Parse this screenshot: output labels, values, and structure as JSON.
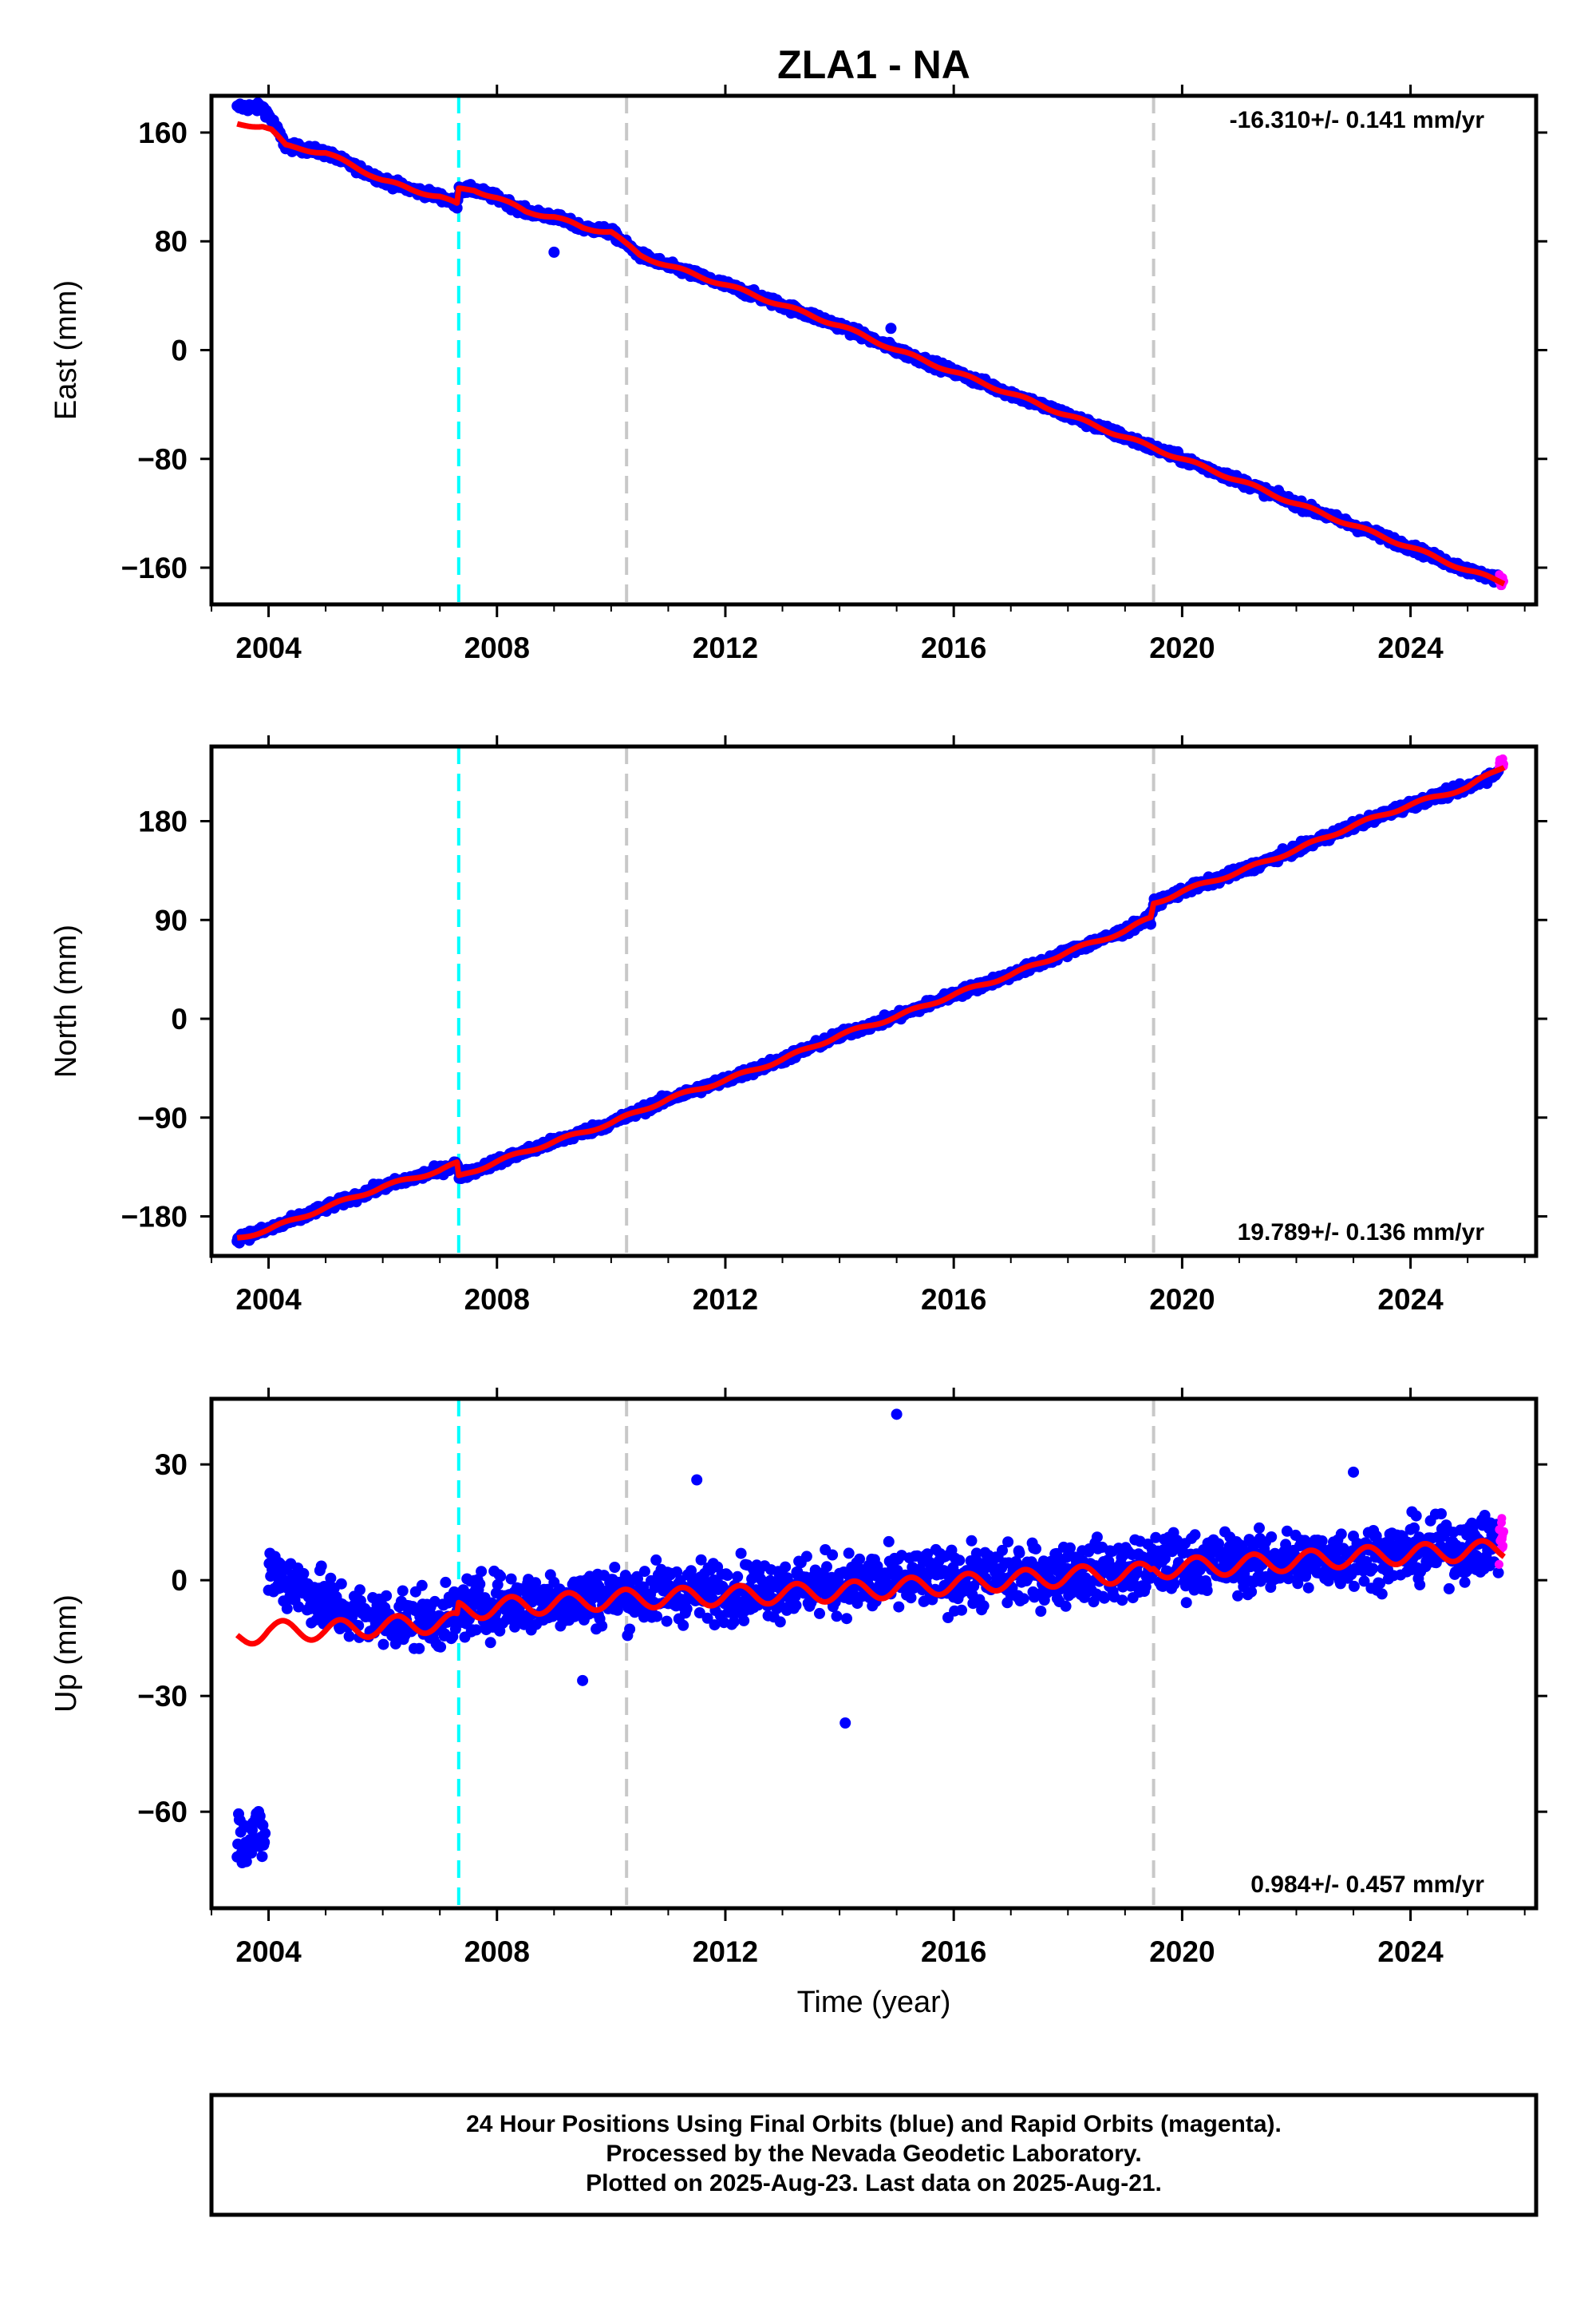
{
  "chart_title": "ZLA1 - NA",
  "colors": {
    "final_orbits": "#0000ff",
    "rapid_orbits": "#ff00ff",
    "model": "#ff0000",
    "equipment_change": "#00ffff",
    "other_event": "#c8c8c8",
    "frame": "#000000"
  },
  "chart_data": [
    {
      "type": "scatter",
      "name": "east",
      "ylabel": "East (mm)",
      "xlabel": "",
      "xlim": [
        2003.0,
        2026.2
      ],
      "ylim": [
        -187,
        187
      ],
      "yticks": [
        160,
        80,
        0,
        -80,
        -160
      ],
      "ytick_labels": [
        "160",
        "80",
        "0",
        "−80",
        "−160"
      ],
      "xticks": [
        2004,
        2008,
        2012,
        2016,
        2020,
        2024
      ],
      "xtick_labels": [
        "2004",
        "2008",
        "2012",
        "2016",
        "2020",
        "2024"
      ],
      "rate_label": "-16.310+/- 0.141 mm/yr",
      "rate_position": "top-right",
      "series": [
        {
          "name": "Final Orbits (blue)",
          "role": "final",
          "data_start": 2003.45,
          "data_end": 2025.55,
          "noise_mm": 2.2,
          "x": [
            2003.45,
            2003.5,
            2003.9,
            2004.05,
            2004.3,
            2004.6,
            2005.0,
            2005.5,
            2006.0,
            2006.5,
            2007.0,
            2007.3,
            2007.33,
            2007.6,
            2008.0,
            2008.5,
            2009.0,
            2009.5,
            2010.0,
            2010.25,
            2010.5,
            2011.0,
            2012.0,
            2013.0,
            2014.0,
            2015.0,
            2016.0,
            2017.0,
            2018.0,
            2019.0,
            2019.5,
            2020.0,
            2021.0,
            2022.0,
            2023.0,
            2024.0,
            2025.0,
            2025.5
          ],
          "y": [
            178,
            179,
            178,
            170,
            150,
            148,
            145,
            135,
            125,
            118,
            113,
            107,
            118,
            118,
            112,
            102,
            98,
            90,
            87,
            78,
            70,
            62,
            48,
            33,
            18,
            0,
            -16,
            -32,
            -48,
            -64,
            -72,
            -80,
            -96,
            -113,
            -129,
            -145,
            -162,
            -168
          ]
        },
        {
          "name": "Rapid Orbits (magenta)",
          "role": "rapid",
          "data_start": 2025.55,
          "data_end": 2025.64,
          "noise_mm": 3.0,
          "x": [
            2025.55,
            2025.64
          ],
          "y": [
            -169,
            -170
          ]
        },
        {
          "name": "Model fit",
          "role": "model",
          "line": true,
          "seasonal_mm": 1.2,
          "x": [
            2003.45,
            2003.9,
            2004.05,
            2004.3,
            2004.6,
            2005.0,
            2005.5,
            2006.0,
            2006.5,
            2007.0,
            2007.3,
            2007.33,
            2007.6,
            2008.0,
            2008.5,
            2009.0,
            2009.5,
            2010.0,
            2010.25,
            2010.5,
            2011.0,
            2012.0,
            2013.0,
            2014.0,
            2015.0,
            2016.0,
            2017.0,
            2018.0,
            2019.0,
            2019.5,
            2020.0,
            2021.0,
            2022.0,
            2023.0,
            2024.0,
            2025.0,
            2025.64
          ],
          "y": [
            166,
            165,
            162,
            150,
            148,
            145,
            135,
            125,
            118,
            113,
            107,
            118,
            118,
            112,
            102,
            98,
            90,
            87,
            78,
            70,
            62,
            48,
            33,
            18,
            0,
            -16,
            -32,
            -48,
            -64,
            -72,
            -80,
            -96,
            -113,
            -129,
            -145,
            -162,
            -171
          ]
        }
      ],
      "events": [
        {
          "x": 2007.33,
          "kind": "equipment_change"
        },
        {
          "x": 2010.27,
          "kind": "other_event"
        },
        {
          "x": 2019.5,
          "kind": "other_event"
        }
      ],
      "outliers": [
        {
          "x": 2009.0,
          "y": 72
        },
        {
          "x": 2014.9,
          "y": 16
        }
      ]
    },
    {
      "type": "scatter",
      "name": "north",
      "ylabel": "North (mm)",
      "xlabel": "",
      "xlim": [
        2003.0,
        2026.2
      ],
      "ylim": [
        -216,
        248
      ],
      "yticks": [
        180,
        90,
        0,
        -90,
        -180
      ],
      "ytick_labels": [
        "180",
        "90",
        "0",
        "−90",
        "−180"
      ],
      "xticks": [
        2004,
        2008,
        2012,
        2016,
        2020,
        2024
      ],
      "xtick_labels": [
        "2004",
        "2008",
        "2012",
        "2016",
        "2020",
        "2024"
      ],
      "rate_label": "19.789+/- 0.136 mm/yr",
      "rate_position": "bottom-right",
      "series": [
        {
          "name": "Final Orbits (blue)",
          "role": "final",
          "data_start": 2003.45,
          "data_end": 2025.55,
          "noise_mm": 2.8,
          "x": [
            2003.45,
            2004.0,
            2005.0,
            2006.0,
            2007.0,
            2007.3,
            2007.33,
            2008.0,
            2009.0,
            2010.0,
            2011.0,
            2012.0,
            2013.0,
            2014.0,
            2015.0,
            2016.0,
            2017.0,
            2018.0,
            2019.0,
            2019.45,
            2019.5,
            2020.0,
            2021.0,
            2022.0,
            2023.0,
            2024.0,
            2025.0,
            2025.55
          ],
          "y": [
            -200,
            -192,
            -172,
            -153,
            -138,
            -132,
            -144,
            -130,
            -112,
            -95,
            -73,
            -56,
            -37,
            -15,
            2,
            22,
            40,
            61,
            80,
            92,
            105,
            116,
            134,
            154,
            176,
            195,
            211,
            225
          ]
        },
        {
          "name": "Rapid Orbits (magenta)",
          "role": "rapid",
          "data_start": 2025.55,
          "data_end": 2025.64,
          "noise_mm": 3.0,
          "x": [
            2025.55,
            2025.64
          ],
          "y": [
            232,
            234
          ]
        },
        {
          "name": "Model fit",
          "role": "model",
          "line": true,
          "seasonal_mm": 1.5,
          "x": [
            2003.45,
            2004.0,
            2005.0,
            2006.0,
            2007.0,
            2007.3,
            2007.33,
            2008.0,
            2009.0,
            2010.0,
            2011.0,
            2012.0,
            2013.0,
            2014.0,
            2015.0,
            2016.0,
            2017.0,
            2018.0,
            2019.0,
            2019.45,
            2019.5,
            2020.0,
            2021.0,
            2022.0,
            2023.0,
            2024.0,
            2025.0,
            2025.64
          ],
          "y": [
            -200,
            -192,
            -172,
            -153,
            -138,
            -132,
            -144,
            -130,
            -112,
            -95,
            -73,
            -56,
            -37,
            -15,
            2,
            22,
            40,
            61,
            80,
            92,
            105,
            116,
            134,
            154,
            176,
            195,
            211,
            230
          ]
        }
      ],
      "events": [
        {
          "x": 2007.33,
          "kind": "equipment_change"
        },
        {
          "x": 2010.27,
          "kind": "other_event"
        },
        {
          "x": 2019.5,
          "kind": "other_event"
        }
      ],
      "outliers": []
    },
    {
      "type": "scatter",
      "name": "up",
      "ylabel": "Up (mm)",
      "xlabel": "Time (year)",
      "xlim": [
        2003.0,
        2026.2
      ],
      "ylim": [
        -85,
        47
      ],
      "yticks": [
        30,
        0,
        -30,
        -60
      ],
      "ytick_labels": [
        "30",
        "0",
        "−30",
        "−60"
      ],
      "xticks": [
        2004,
        2008,
        2012,
        2016,
        2020,
        2024
      ],
      "xtick_labels": [
        "2004",
        "2008",
        "2012",
        "2016",
        "2020",
        "2024"
      ],
      "rate_label": "0.984+/- 0.457 mm/yr",
      "rate_position": "bottom-right",
      "series": [
        {
          "name": "Final Orbits (early cluster)",
          "role": "final",
          "data_start": 2003.45,
          "data_end": 2003.95,
          "noise_mm": 5.5,
          "x": [
            2003.45,
            2003.95
          ],
          "y": [
            -66,
            -66
          ]
        },
        {
          "name": "Final Orbits (blue)",
          "role": "final",
          "data_start": 2004.0,
          "data_end": 2025.55,
          "noise_mm": 5.5,
          "x": [
            2004.0,
            2004.5,
            2005.0,
            2005.5,
            2006.0,
            2007.0,
            2007.3,
            2007.33,
            2010.0,
            2014.0,
            2017.0,
            2019.45,
            2019.5,
            2022.0,
            2025.55
          ],
          "y": [
            2,
            -1,
            -6,
            -9,
            -10,
            -10,
            -10,
            -7,
            -4,
            -1,
            1,
            3,
            4,
            5,
            9
          ]
        },
        {
          "name": "Rapid Orbits (magenta)",
          "role": "rapid",
          "data_start": 2025.55,
          "data_end": 2025.64,
          "noise_mm": 5.0,
          "x": [
            2025.55,
            2025.64
          ],
          "y": [
            11,
            11
          ]
        },
        {
          "name": "Model fit",
          "role": "model",
          "line": true,
          "seasonal_mm": 2.5,
          "x": [
            2003.45,
            2004.0,
            2005.0,
            2006.0,
            2007.0,
            2007.3,
            2007.33,
            2008.0,
            2010.0,
            2012.0,
            2014.0,
            2016.0,
            2018.0,
            2019.45,
            2019.5,
            2021.0,
            2023.0,
            2025.64
          ],
          "y": [
            -15,
            -13,
            -13,
            -12,
            -11,
            -11,
            -8,
            -7,
            -5,
            -4,
            -3,
            -1,
            1,
            2,
            3,
            4,
            6,
            8
          ]
        }
      ],
      "events": [
        {
          "x": 2007.33,
          "kind": "equipment_change"
        },
        {
          "x": 2010.27,
          "kind": "other_event"
        },
        {
          "x": 2019.5,
          "kind": "other_event"
        }
      ],
      "outliers": [
        {
          "x": 2015.0,
          "y": 43
        },
        {
          "x": 2014.1,
          "y": -37
        },
        {
          "x": 2009.5,
          "y": -26
        },
        {
          "x": 2011.5,
          "y": 26
        },
        {
          "x": 2023.0,
          "y": 28
        }
      ]
    }
  ],
  "footer": {
    "line1": "24 Hour Positions Using Final Orbits (blue) and Rapid Orbits (magenta).",
    "line2": "Processed by the Nevada Geodetic Laboratory.",
    "line3": "Plotted on 2025-Aug-23. Last data on 2025-Aug-21."
  }
}
